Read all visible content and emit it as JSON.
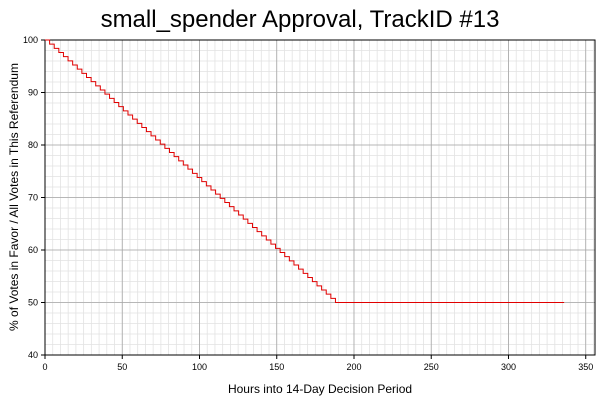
{
  "chart_data": {
    "type": "line",
    "title": "small_spender Approval, TrackID #13",
    "xlabel": "Hours into 14-Day Decision Period",
    "ylabel": "% of Votes in Favor / All Votes in This Referendum",
    "xlim": [
      0,
      356
    ],
    "ylim": [
      40,
      100
    ],
    "x_ticks": [
      0,
      50,
      100,
      150,
      200,
      250,
      300,
      350
    ],
    "y_ticks": [
      40,
      50,
      60,
      70,
      80,
      90,
      100
    ],
    "grid": true,
    "line_color": "#e00000",
    "series": [
      {
        "step": "post",
        "x": [
          0,
          188,
          336
        ],
        "y": [
          100,
          50,
          50
        ]
      }
    ]
  }
}
